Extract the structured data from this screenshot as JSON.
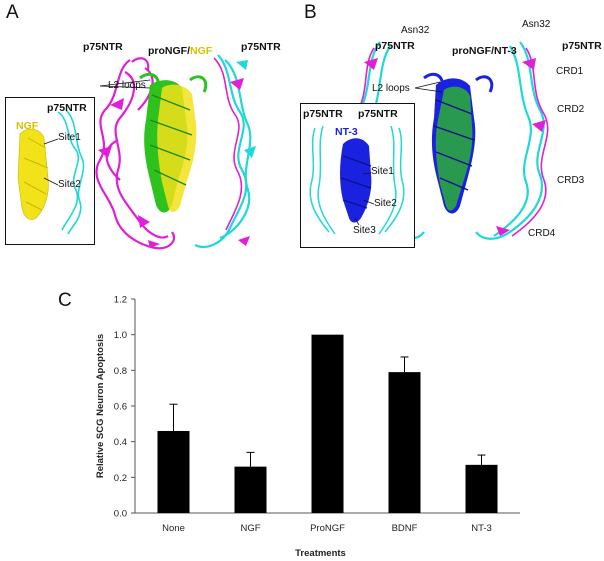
{
  "panels": {
    "A": {
      "letter": "A",
      "labels": {
        "p75_left": "p75NTR",
        "p75_right": "p75NTR",
        "complex_pre": "proNGF/",
        "complex_post": "NGF",
        "l2": "L2 loops"
      },
      "inset": {
        "p75": "p75NTR",
        "ligand": "NGF",
        "site1": "Site1",
        "site2": "Site2"
      }
    },
    "B": {
      "letter": "B",
      "labels": {
        "asn_left": "Asn32",
        "asn_right": "Asn32",
        "p75_left": "p75NTR",
        "p75_right": "p75NTR",
        "complex": "proNGF/NT-3",
        "l2": "L2 loops",
        "crd1": "CRD1",
        "crd2": "CRD2",
        "crd3": "CRD3",
        "crd4": "CRD4"
      },
      "inset": {
        "p75_left": "p75NTR",
        "p75_right": "p75NTR",
        "ligand": "NT-3",
        "site1": "Site1",
        "site2": "Site2",
        "site3": "Site3"
      }
    },
    "C": {
      "letter": "C"
    }
  },
  "colors": {
    "ngf": "#f2e21a",
    "green": "#2fc21f",
    "magenta": "#e11fd6",
    "cyan": "#1fd8d8",
    "blue": "#1a22e0",
    "bar": "#000000"
  },
  "chart_data": {
    "type": "bar",
    "categories": [
      "None",
      "NGF",
      "ProNGF",
      "BDNF",
      "NT-3"
    ],
    "values": [
      0.46,
      0.26,
      1.0,
      0.79,
      0.27
    ],
    "errors": [
      0.15,
      0.08,
      0.0,
      0.085,
      0.055
    ],
    "xlabel": "Treatments",
    "ylabel": "Relative SCG Neuron Apoptosis",
    "ylim": [
      0,
      1.2
    ],
    "yticks": [
      "0.0",
      "0.2",
      "0.4",
      "0.6",
      "0.8",
      "1.0",
      "1.2"
    ],
    "grid": false
  }
}
